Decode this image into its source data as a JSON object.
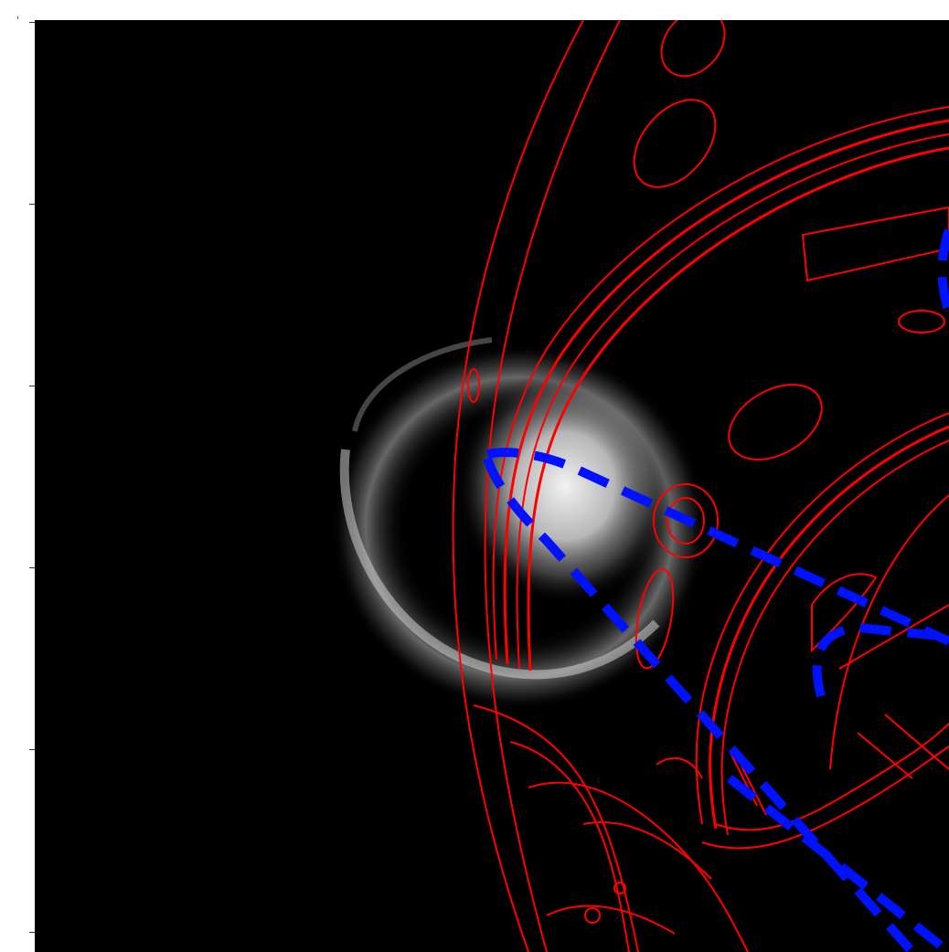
{
  "figure": {
    "corner_mark": "'",
    "colors": {
      "background": "#000000",
      "edge_overlay": "#ff0000",
      "projection_lines": "#0011ff",
      "glow": "#e8e8e8",
      "axis": "#333333"
    },
    "layers": [
      "camera-image",
      "red-edge-overlay",
      "blue-dashed-projection"
    ]
  }
}
